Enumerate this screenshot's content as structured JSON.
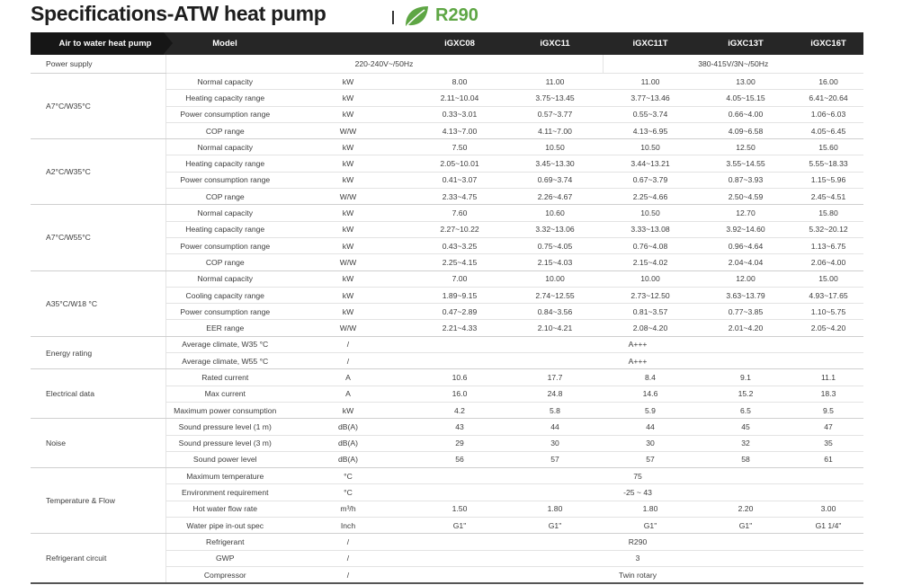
{
  "header": {
    "title": "Specifications-ATW heat pump",
    "refrigerant_badge": "R290",
    "accent_color": "#5ea644"
  },
  "table": {
    "corner_label": "Air to water heat pump",
    "model_label": "Model",
    "models": [
      "iGXC08",
      "iGXC11",
      "iGXC11T",
      "iGXC13T",
      "iGXC16T"
    ],
    "power_supply": {
      "label": "Power supply",
      "single_phase": "220-240V~/50Hz",
      "three_phase": "380-415V/3N~/50Hz"
    },
    "groups": [
      {
        "label": "A7°C/W35°C",
        "rows": [
          {
            "param": "Normal capacity",
            "unit": "kW",
            "values": [
              "8.00",
              "11.00",
              "11.00",
              "13.00",
              "16.00"
            ]
          },
          {
            "param": "Heating capacity range",
            "unit": "kW",
            "values": [
              "2.11~10.04",
              "3.75~13.45",
              "3.77~13.46",
              "4.05~15.15",
              "6.41~20.64"
            ]
          },
          {
            "param": "Power consumption range",
            "unit": "kW",
            "values": [
              "0.33~3.01",
              "0.57~3.77",
              "0.55~3.74",
              "0.66~4.00",
              "1.06~6.03"
            ]
          },
          {
            "param": "COP range",
            "unit": "W/W",
            "values": [
              "4.13~7.00",
              "4.11~7.00",
              "4.13~6.95",
              "4.09~6.58",
              "4.05~6.45"
            ]
          }
        ]
      },
      {
        "label": "A2°C/W35°C",
        "rows": [
          {
            "param": "Normal capacity",
            "unit": "kW",
            "values": [
              "7.50",
              "10.50",
              "10.50",
              "12.50",
              "15.60"
            ]
          },
          {
            "param": "Heating capacity range",
            "unit": "kW",
            "values": [
              "2.05~10.01",
              "3.45~13.30",
              "3.44~13.21",
              "3.55~14.55",
              "5.55~18.33"
            ]
          },
          {
            "param": "Power consumption range",
            "unit": "kW",
            "values": [
              "0.41~3.07",
              "0.69~3.74",
              "0.67~3.79",
              "0.87~3.93",
              "1.15~5.96"
            ]
          },
          {
            "param": "COP range",
            "unit": "W/W",
            "values": [
              "2.33~4.75",
              "2.26~4.67",
              "2.25~4.66",
              "2.50~4.59",
              "2.45~4.51"
            ]
          }
        ]
      },
      {
        "label": "A7°C/W55°C",
        "rows": [
          {
            "param": "Normal capacity",
            "unit": "kW",
            "values": [
              "7.60",
              "10.60",
              "10.50",
              "12.70",
              "15.80"
            ]
          },
          {
            "param": "Heating capacity range",
            "unit": "kW",
            "values": [
              "2.27~10.22",
              "3.32~13.06",
              "3.33~13.08",
              "3.92~14.60",
              "5.32~20.12"
            ]
          },
          {
            "param": "Power consumption range",
            "unit": "kW",
            "values": [
              "0.43~3.25",
              "0.75~4.05",
              "0.76~4.08",
              "0.96~4.64",
              "1.13~6.75"
            ]
          },
          {
            "param": "COP range",
            "unit": "W/W",
            "values": [
              "2.25~4.15",
              "2.15~4.03",
              "2.15~4.02",
              "2.04~4.04",
              "2.06~4.00"
            ]
          }
        ]
      },
      {
        "label": "A35°C/W18 °C",
        "rows": [
          {
            "param": "Normal capacity",
            "unit": "kW",
            "values": [
              "7.00",
              "10.00",
              "10.00",
              "12.00",
              "15.00"
            ]
          },
          {
            "param": "Cooling capacity range",
            "unit": "kW",
            "values": [
              "1.89~9.15",
              "2.74~12.55",
              "2.73~12.50",
              "3.63~13.79",
              "4.93~17.65"
            ]
          },
          {
            "param": "Power consumption range",
            "unit": "kW",
            "values": [
              "0.47~2.89",
              "0.84~3.56",
              "0.81~3.57",
              "0.77~3.85",
              "1.10~5.75"
            ]
          },
          {
            "param": "EER range",
            "unit": "W/W",
            "values": [
              "2.21~4.33",
              "2.10~4.21",
              "2.08~4.20",
              "2.01~4.20",
              "2.05~4.20"
            ]
          }
        ]
      },
      {
        "label": "Energy rating",
        "rows": [
          {
            "param": "Average climate, W35 °C",
            "unit": "/",
            "merged": "A+++"
          },
          {
            "param": "Average climate, W55 °C",
            "unit": "/",
            "merged": "A+++"
          }
        ]
      },
      {
        "label": "Electrical data",
        "rows": [
          {
            "param": "Rated current",
            "unit": "A",
            "values": [
              "10.6",
              "17.7",
              "8.4",
              "9.1",
              "11.1"
            ]
          },
          {
            "param": "Max current",
            "unit": "A",
            "values": [
              "16.0",
              "24.8",
              "14.6",
              "15.2",
              "18.3"
            ]
          },
          {
            "param": "Maximum power consumption",
            "unit": "kW",
            "values": [
              "4.2",
              "5.8",
              "5.9",
              "6.5",
              "9.5"
            ]
          }
        ]
      },
      {
        "label": "Noise",
        "rows": [
          {
            "param": "Sound pressure level (1 m)",
            "unit": "dB(A)",
            "values": [
              "43",
              "44",
              "44",
              "45",
              "47"
            ]
          },
          {
            "param": "Sound pressure level (3 m)",
            "unit": "dB(A)",
            "values": [
              "29",
              "30",
              "30",
              "32",
              "35"
            ]
          },
          {
            "param": "Sound power level",
            "unit": "dB(A)",
            "values": [
              "56",
              "57",
              "57",
              "58",
              "61"
            ]
          }
        ]
      },
      {
        "label": "Temperature & Flow",
        "rows": [
          {
            "param": "Maximum temperature",
            "unit": "°C",
            "merged": "75"
          },
          {
            "param": "Environment  requirement",
            "unit": "°C",
            "merged": "-25 ~ 43"
          },
          {
            "param": "Hot water flow rate",
            "unit": "m³/h",
            "values": [
              "1.50",
              "1.80",
              "1.80",
              "2.20",
              "3.00"
            ]
          },
          {
            "param": "Water pipe in-out spec",
            "unit": "Inch",
            "values": [
              "G1\"",
              "G1\"",
              "G1\"",
              "G1\"",
              "G1 1/4\""
            ]
          }
        ]
      },
      {
        "label": "Refrigerant circuit",
        "rows": [
          {
            "param": "Refrigerant",
            "unit": "/",
            "merged": "R290"
          },
          {
            "param": "GWP",
            "unit": "/",
            "merged": "3"
          },
          {
            "param": "Compressor",
            "unit": "/",
            "merged": "Twin rotary"
          }
        ]
      }
    ]
  }
}
